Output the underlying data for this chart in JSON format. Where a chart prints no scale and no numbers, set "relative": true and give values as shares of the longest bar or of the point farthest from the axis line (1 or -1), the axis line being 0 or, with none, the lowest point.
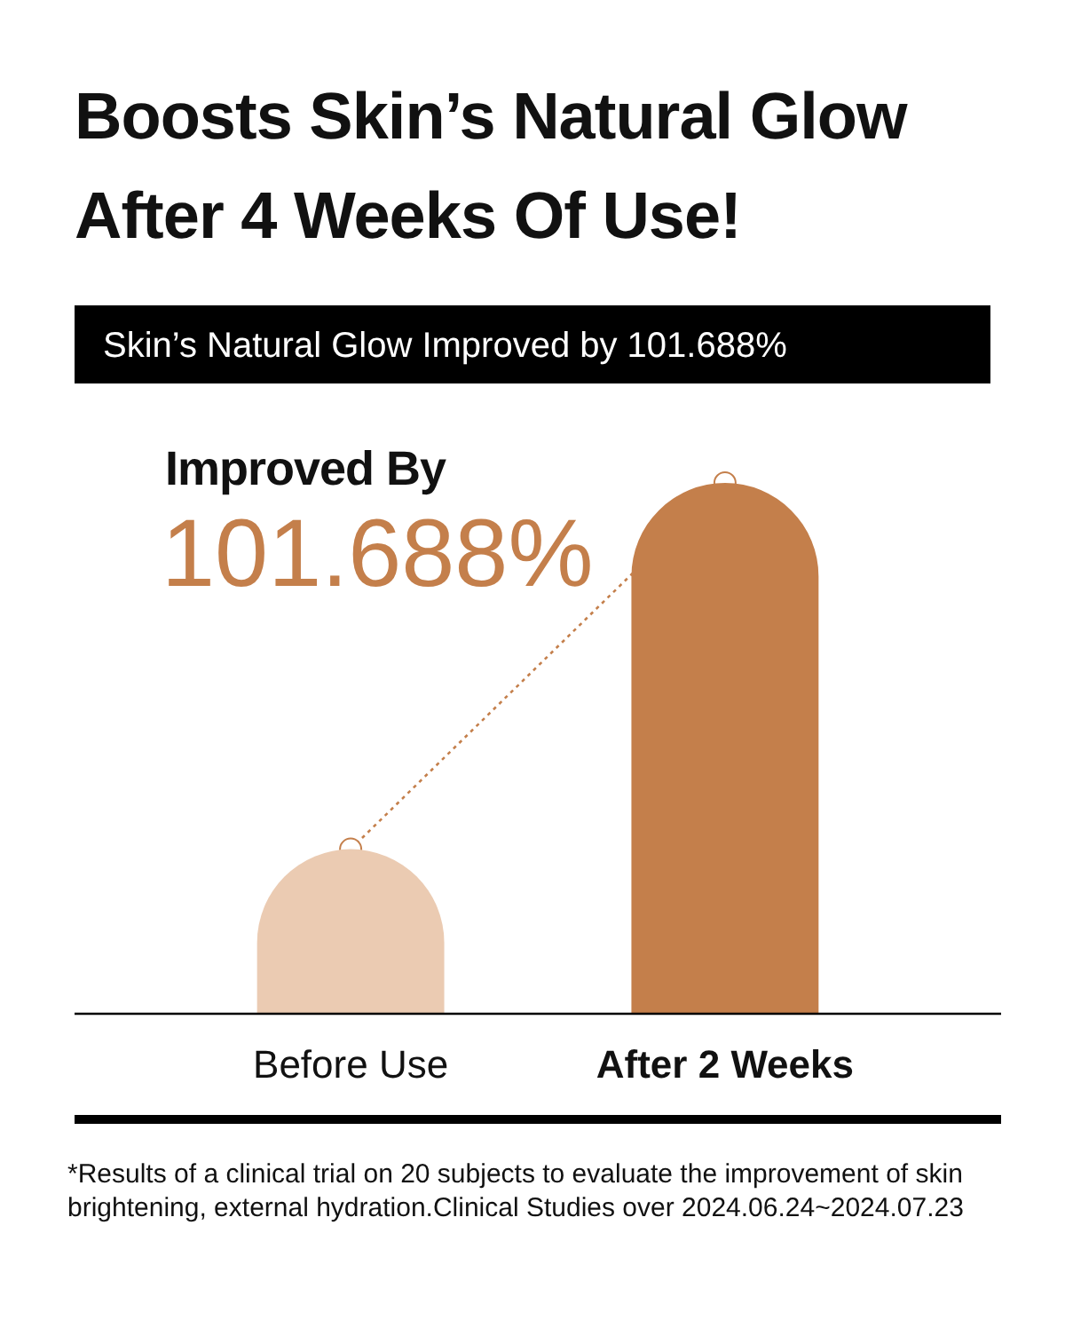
{
  "chart_data": {
    "type": "bar",
    "relative": true,
    "title": "Boosts Skin’s Natural Glow After 4 Weeks Of Use!",
    "subtitle": "Skin’s Natural Glow Improved by 101.688%",
    "categories": [
      "Before Use",
      "After 2 Weeks"
    ],
    "values": [
      0.31,
      1
    ],
    "colors": [
      "#ebcbb2",
      "#c47f4b"
    ],
    "annotations": [
      "Improved By",
      "101.688%",
      "*Results of a clinical trial on 20 subjects to evaluate the improvement of skin brightening, external hydration.Clinical Studies over 2024.06.24~2024.07.23"
    ]
  }
}
